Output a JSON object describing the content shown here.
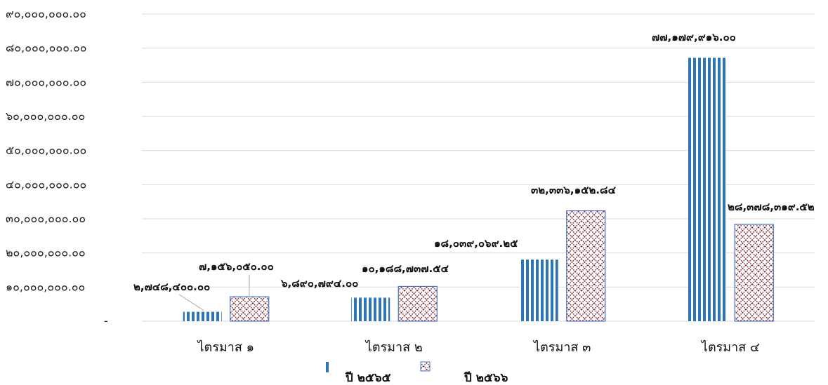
{
  "chart_data": {
    "type": "bar",
    "title": "",
    "xlabel": "",
    "ylabel": "",
    "ylim": [
      0,
      90000000
    ],
    "yticks": [
      0,
      10000000,
      20000000,
      30000000,
      40000000,
      50000000,
      60000000,
      70000000,
      80000000,
      90000000
    ],
    "ytick_labels": [
      "-",
      "๑๐,๐๐๐,๐๐๐.๐๐",
      "๒๐,๐๐๐,๐๐๐.๐๐",
      "๓๐,๐๐๐,๐๐๐.๐๐",
      "๔๐,๐๐๐,๐๐๐.๐๐",
      "๕๐,๐๐๐,๐๐๐.๐๐",
      "๖๐,๐๐๐,๐๐๐.๐๐",
      "๗๐,๐๐๐,๐๐๐.๐๐",
      "๘๐,๐๐๐,๐๐๐.๐๐",
      "๙๐,๐๐๐,๐๐๐.๐๐"
    ],
    "grid": true,
    "legend_position": "bottom-center",
    "categories": [
      "ไตรมาส ๑",
      "ไตรมาส ๒",
      "ไตรมาส ๓",
      "ไตรมาส ๔"
    ],
    "series": [
      {
        "name": "ปี ๒๕๖๕",
        "color": "#2e75b6",
        "pattern": "vertical-stripes",
        "values": [
          2748400.0,
          6890794.0,
          18039069.25,
          77179916.0
        ],
        "labels": [
          "๒,๗๔๘,๔๐๐.๐๐",
          "๖,๘๙๐,๗๙๔.๐๐",
          "๑๘,๐๓๙,๐๖๙.๒๕",
          "๗๗,๑๗๙,๙๑๖.๐๐"
        ]
      },
      {
        "name": "ปี ๒๕๖๖",
        "color": "#7b1c2a",
        "border_color": "#4472c4",
        "pattern": "diamond-lattice",
        "values": [
          7156050.0,
          10188737.54,
          32336152.84,
          28378319.52
        ],
        "labels": [
          "๗,๑๕๖,๐๕๐.๐๐",
          "๑๐,๑๘๘,๗๓๗.๕๔",
          "๓๒,๓๓๖,๑๕๒.๘๔",
          "๒๘,๓๗๘,๓๑๙.๕๒"
        ]
      }
    ]
  }
}
